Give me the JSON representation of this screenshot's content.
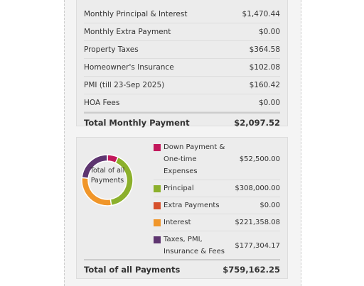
{
  "summary": {
    "rows": [
      {
        "label": "Monthly Principal & Interest",
        "value": "$1,470.44"
      },
      {
        "label": "Monthly Extra Payment",
        "value": "$0.00"
      },
      {
        "label": "Property Taxes",
        "value": "$364.58"
      },
      {
        "label": "Homeowner's Insurance",
        "value": "$102.08"
      },
      {
        "label": "PMI (till 23-Sep 2025)",
        "value": "$160.42"
      },
      {
        "label": "HOA Fees",
        "value": "$0.00"
      }
    ],
    "total": {
      "label": "Total Monthly Payment",
      "value": "$2,097.52"
    }
  },
  "breakdown": {
    "center_label": "Total of all Payments",
    "items": [
      {
        "label": "Down Payment & One-time Expenses",
        "value": "$52,500.00",
        "color": "#c2185b"
      },
      {
        "label": "Principal",
        "value": "$308,000.00",
        "color": "#8cb02c"
      },
      {
        "label": "Extra Payments",
        "value": "$0.00",
        "color": "#d6502c"
      },
      {
        "label": "Interest",
        "value": "$221,358.08",
        "color": "#f0962a"
      },
      {
        "label": "Taxes, PMI, Insurance & Fees",
        "value": "$177,304.17",
        "color": "#5e3570"
      }
    ],
    "total": {
      "label": "Total of all Payments",
      "value": "$759,162.25"
    }
  }
}
